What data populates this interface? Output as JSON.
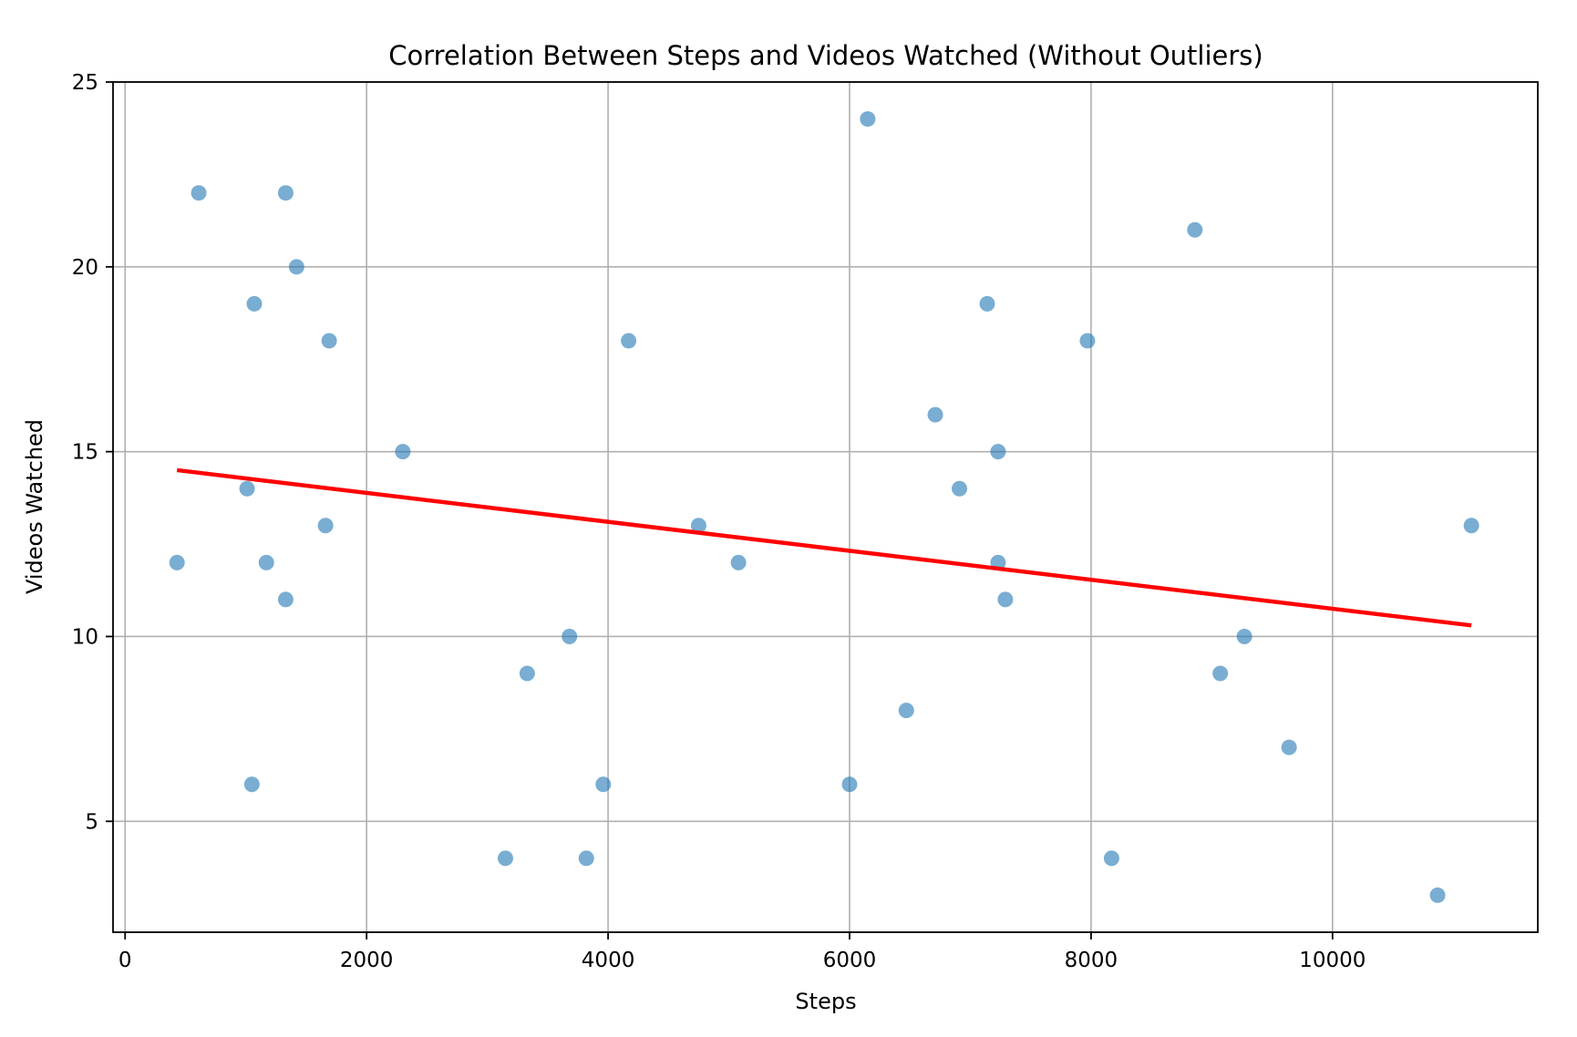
{
  "chart_data": {
    "type": "scatter",
    "title": "Correlation Between Steps and Videos Watched (Without Outliers)",
    "xlabel": "Steps",
    "ylabel": "Videos Watched",
    "xlim": [
      -100,
      11700
    ],
    "ylim": [
      2,
      25
    ],
    "xticks": [
      0,
      2000,
      4000,
      6000,
      8000,
      10000
    ],
    "yticks": [
      5,
      10,
      15,
      20,
      25
    ],
    "grid": true,
    "colors": {
      "points": "#1f77b4",
      "trend": "#ff0000"
    },
    "series": [
      {
        "points": [
          {
            "x": 430,
            "y": 12
          },
          {
            "x": 610,
            "y": 22
          },
          {
            "x": 1010,
            "y": 14
          },
          {
            "x": 1050,
            "y": 6
          },
          {
            "x": 1070,
            "y": 19
          },
          {
            "x": 1170,
            "y": 12
          },
          {
            "x": 1330,
            "y": 22
          },
          {
            "x": 1330,
            "y": 11
          },
          {
            "x": 1420,
            "y": 20
          },
          {
            "x": 1660,
            "y": 13
          },
          {
            "x": 1690,
            "y": 18
          },
          {
            "x": 2300,
            "y": 15
          },
          {
            "x": 3150,
            "y": 4
          },
          {
            "x": 3330,
            "y": 9
          },
          {
            "x": 3680,
            "y": 10
          },
          {
            "x": 3820,
            "y": 4
          },
          {
            "x": 3960,
            "y": 6
          },
          {
            "x": 4170,
            "y": 18
          },
          {
            "x": 4750,
            "y": 13
          },
          {
            "x": 5080,
            "y": 12
          },
          {
            "x": 6000,
            "y": 6
          },
          {
            "x": 6150,
            "y": 24
          },
          {
            "x": 6470,
            "y": 8
          },
          {
            "x": 6710,
            "y": 16
          },
          {
            "x": 6910,
            "y": 14
          },
          {
            "x": 7140,
            "y": 19
          },
          {
            "x": 7230,
            "y": 15
          },
          {
            "x": 7230,
            "y": 12
          },
          {
            "x": 7290,
            "y": 11
          },
          {
            "x": 7970,
            "y": 18
          },
          {
            "x": 8170,
            "y": 4
          },
          {
            "x": 8860,
            "y": 21
          },
          {
            "x": 9070,
            "y": 9
          },
          {
            "x": 9270,
            "y": 10
          },
          {
            "x": 9640,
            "y": 7
          },
          {
            "x": 10870,
            "y": 3
          },
          {
            "x": 11150,
            "y": 13
          }
        ]
      }
    ],
    "trend_line": {
      "x": [
        430,
        11150
      ],
      "y": [
        14.5,
        10.3
      ]
    }
  }
}
